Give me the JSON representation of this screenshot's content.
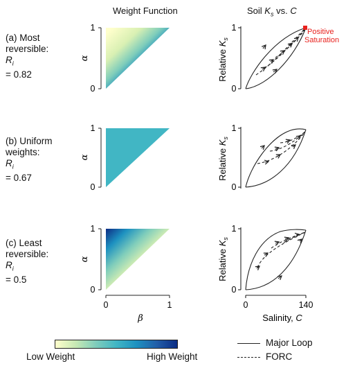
{
  "titles": {
    "weight_function": "Weight Function",
    "soil_prefix": "Soil ",
    "soil_k": "K",
    "soil_s": "s",
    "soil_vs": " vs. ",
    "soil_c": "C"
  },
  "rows": [
    {
      "line1": "(a) Most",
      "line2": "reversible:",
      "ri_symbol": "R",
      "ri_sub": "i",
      "ri_value": " = 0.82"
    },
    {
      "line1": "(b) Uniform",
      "line2": "weights:",
      "ri_symbol": "R",
      "ri_sub": "i",
      "ri_value": " = 0.67"
    },
    {
      "line1": "(c) Least",
      "line2": "reversible:",
      "ri_symbol": "R",
      "ri_sub": "i",
      "ri_value": " = 0.5"
    }
  ],
  "left_axes": {
    "y_label": "α",
    "x_label": "β",
    "y_ticks": [
      "0",
      "1"
    ],
    "x_ticks": [
      "0",
      "1"
    ]
  },
  "right_axes": {
    "y_label_prefix": "Relative ",
    "y_label_k": "K",
    "y_label_s": "s",
    "y_ticks": [
      "0",
      "1"
    ],
    "x_ticks": [
      "0",
      "140"
    ],
    "x_label": "Salinity, ",
    "x_label_var": "C"
  },
  "annotation": {
    "line1": "Positive",
    "line2": "Saturation",
    "color": "#e8211d"
  },
  "colorbar": {
    "low": "Low Weight",
    "high": "High Weight",
    "colors": [
      "#ffffcc",
      "#7fcdbb",
      "#41b6c4",
      "#225ea8",
      "#0c2c84"
    ]
  },
  "uniform_color": "#41b6c4",
  "legend": {
    "major": "Major Loop",
    "forc": "FORC"
  }
}
